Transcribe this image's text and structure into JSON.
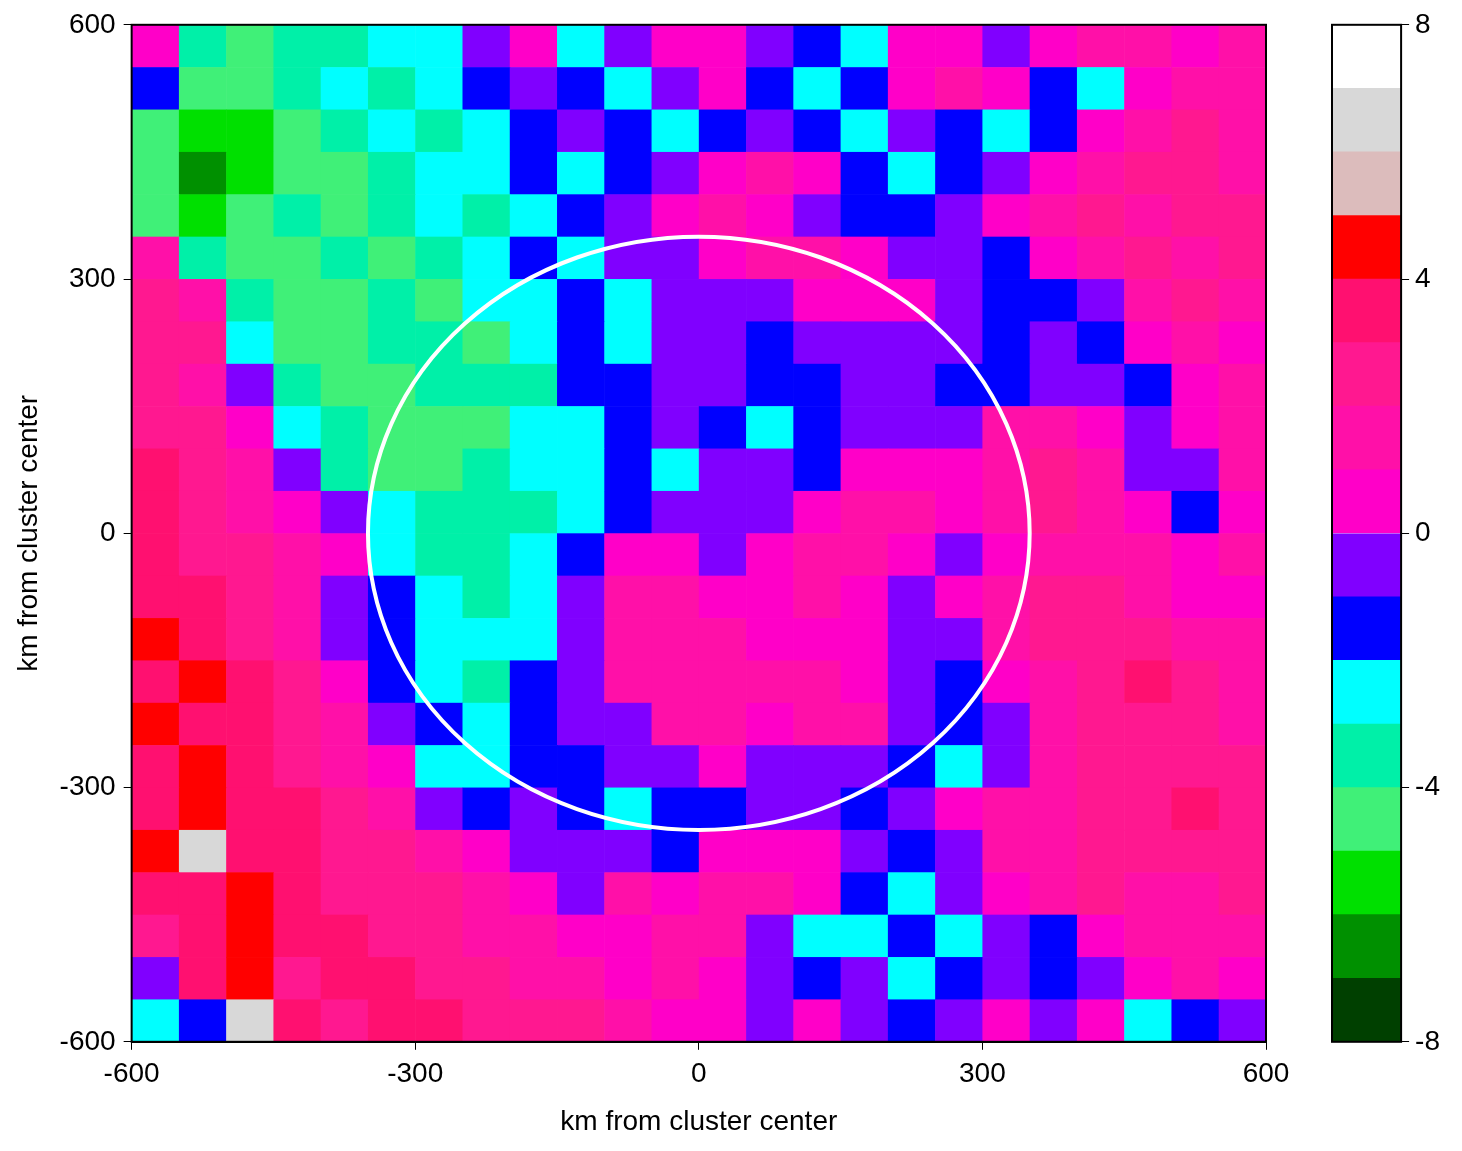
{
  "chart_data": {
    "type": "heatmap",
    "x_label": "km from cluster center",
    "y_label": "km from cluster center",
    "xlim": [
      -600,
      600
    ],
    "ylim": [
      -600,
      600
    ],
    "xticks": [
      -600,
      -300,
      0,
      300,
      600
    ],
    "yticks": [
      -600,
      -300,
      0,
      300,
      600
    ],
    "x": [
      -575,
      -525,
      -475,
      -425,
      -375,
      -325,
      -275,
      -225,
      -175,
      -125,
      -75,
      -25,
      25,
      75,
      125,
      175,
      225,
      275,
      325,
      375,
      425,
      475,
      525,
      575
    ],
    "y": [
      575,
      525,
      475,
      425,
      375,
      325,
      275,
      225,
      175,
      125,
      75,
      25,
      -25,
      -75,
      -125,
      -175,
      -225,
      -275,
      -325,
      -375,
      -425,
      -475,
      -525,
      -575
    ],
    "values": [
      [
        0.5,
        -3.5,
        -4.5,
        -3.5,
        -3.5,
        -2.5,
        -2.5,
        -0.5,
        0.5,
        -2.5,
        -0.5,
        0.5,
        0.5,
        -0.5,
        -1.5,
        -2.5,
        0.5,
        0.5,
        -0.5,
        0.5,
        1.5,
        1.5,
        0.5,
        1.5
      ],
      [
        -1.5,
        -4.5,
        -4.5,
        -3.5,
        -2.5,
        -3.5,
        -2.5,
        -1.5,
        -0.5,
        -1.5,
        -2.5,
        -0.5,
        0.5,
        -1.5,
        -2.5,
        -1.5,
        0.5,
        1.5,
        0.5,
        -1.5,
        -2.5,
        0.5,
        1.5,
        1.5
      ],
      [
        -4.5,
        -5.5,
        -5.5,
        -4.5,
        -3.5,
        -2.5,
        -3.5,
        -2.5,
        -1.5,
        -0.5,
        -1.5,
        -2.5,
        -1.5,
        -0.5,
        -1.5,
        -2.5,
        -0.5,
        -1.5,
        -2.5,
        -1.5,
        0.5,
        1.5,
        2.5,
        1.5
      ],
      [
        -4.5,
        -6.5,
        -5.5,
        -4.5,
        -4.5,
        -3.5,
        -2.5,
        -2.5,
        -1.5,
        -2.5,
        -1.5,
        -0.5,
        0.5,
        1.5,
        0.5,
        -1.5,
        -2.5,
        -1.5,
        -0.5,
        0.5,
        1.5,
        2.5,
        2.5,
        1.5
      ],
      [
        -4.5,
        -5.5,
        -4.5,
        -3.5,
        -4.5,
        -3.5,
        -2.5,
        -3.5,
        -2.5,
        -1.5,
        -0.5,
        0.5,
        1.5,
        0.5,
        -0.5,
        -1.5,
        -1.5,
        -0.5,
        0.5,
        1.5,
        2.5,
        1.5,
        2.5,
        2.5
      ],
      [
        1.5,
        -3.5,
        -4.5,
        -4.5,
        -3.5,
        -4.5,
        -3.5,
        -2.5,
        -1.5,
        -2.5,
        -0.5,
        -0.5,
        0.5,
        1.5,
        1.5,
        0.5,
        -0.5,
        -0.5,
        -1.5,
        0.5,
        1.5,
        2.5,
        1.5,
        2.5
      ],
      [
        2.5,
        1.5,
        -3.5,
        -4.5,
        -4.5,
        -3.5,
        -4.5,
        -2.5,
        -2.5,
        -1.5,
        -2.5,
        -0.5,
        -0.5,
        -0.5,
        0.5,
        0.5,
        0.5,
        -0.5,
        -1.5,
        -1.5,
        -0.5,
        1.5,
        2.5,
        1.5
      ],
      [
        2.5,
        2.5,
        -2.5,
        -4.5,
        -4.5,
        -3.5,
        -3.5,
        -4.5,
        -2.5,
        -1.5,
        -2.5,
        -0.5,
        -0.5,
        -1.5,
        -0.5,
        -0.5,
        -0.5,
        -0.5,
        -1.5,
        -0.5,
        -1.5,
        0.5,
        1.5,
        0.5
      ],
      [
        2.5,
        1.5,
        -0.5,
        -3.5,
        -4.5,
        -4.5,
        -3.5,
        -3.5,
        -3.5,
        -1.5,
        -1.5,
        -0.5,
        -0.5,
        -1.5,
        -1.5,
        -0.5,
        -0.5,
        -1.5,
        -1.5,
        -0.5,
        -0.5,
        -1.5,
        0.5,
        1.5
      ],
      [
        2.5,
        2.5,
        0.5,
        -2.5,
        -3.5,
        -4.5,
        -4.5,
        -4.5,
        -2.5,
        -2.5,
        -1.5,
        -0.5,
        -1.5,
        -2.5,
        -1.5,
        -0.5,
        -0.5,
        -0.5,
        1.5,
        1.5,
        0.5,
        -0.5,
        0.5,
        1.5
      ],
      [
        3.5,
        2.5,
        1.5,
        -0.5,
        -3.5,
        -4.5,
        -4.5,
        -3.5,
        -2.5,
        -2.5,
        -1.5,
        -2.5,
        -0.5,
        -0.5,
        -1.5,
        0.5,
        0.5,
        0.5,
        1.5,
        2.5,
        1.5,
        -0.5,
        -0.5,
        1.5
      ],
      [
        3.5,
        2.5,
        1.5,
        0.5,
        -0.5,
        -2.5,
        -3.5,
        -3.5,
        -3.5,
        -2.5,
        -1.5,
        -0.5,
        -0.5,
        -0.5,
        0.5,
        1.5,
        1.5,
        0.5,
        1.5,
        2.5,
        1.5,
        0.5,
        -1.5,
        0.5
      ],
      [
        3.5,
        2.5,
        2.5,
        1.5,
        0.5,
        -2.5,
        -3.5,
        -3.5,
        -2.5,
        -1.5,
        0.5,
        0.5,
        -0.5,
        0.5,
        1.5,
        1.5,
        0.5,
        -0.5,
        0.5,
        1.5,
        1.5,
        1.5,
        0.5,
        1.5
      ],
      [
        3.5,
        3.5,
        2.5,
        1.5,
        -0.5,
        -1.5,
        -2.5,
        -3.5,
        -2.5,
        -0.5,
        1.5,
        1.5,
        0.5,
        0.5,
        1.5,
        0.5,
        -0.5,
        0.5,
        1.5,
        2.5,
        2.5,
        1.5,
        0.5,
        0.5
      ],
      [
        4.5,
        3.5,
        2.5,
        1.5,
        -0.5,
        -1.5,
        -2.5,
        -2.5,
        -2.5,
        -0.5,
        1.5,
        1.5,
        1.5,
        0.5,
        0.5,
        0.5,
        -0.5,
        -0.5,
        1.5,
        2.5,
        2.5,
        2.5,
        1.5,
        1.5
      ],
      [
        3.5,
        4.5,
        3.5,
        2.5,
        0.5,
        -1.5,
        -2.5,
        -3.5,
        -1.5,
        -0.5,
        1.5,
        1.5,
        1.5,
        1.5,
        1.5,
        0.5,
        -0.5,
        -1.5,
        0.5,
        1.5,
        2.5,
        3.5,
        2.5,
        1.5
      ],
      [
        4.5,
        3.5,
        3.5,
        2.5,
        1.5,
        -0.5,
        -1.5,
        -2.5,
        -1.5,
        -0.5,
        -0.5,
        1.5,
        1.5,
        0.5,
        1.5,
        1.5,
        -0.5,
        -1.5,
        -0.5,
        1.5,
        2.5,
        2.5,
        2.5,
        1.5
      ],
      [
        3.5,
        4.5,
        3.5,
        2.5,
        1.5,
        0.5,
        -2.5,
        -2.5,
        -1.5,
        -1.5,
        -0.5,
        -0.5,
        0.5,
        -0.5,
        -0.5,
        -0.5,
        -1.5,
        -2.5,
        -0.5,
        1.5,
        2.5,
        2.5,
        2.5,
        2.5
      ],
      [
        3.5,
        4.5,
        3.5,
        3.5,
        2.5,
        1.5,
        -0.5,
        -1.5,
        -0.5,
        -1.5,
        -2.5,
        -1.5,
        -1.5,
        -0.5,
        -0.5,
        -1.5,
        -0.5,
        0.5,
        1.5,
        1.5,
        2.5,
        2.5,
        3.5,
        2.5
      ],
      [
        4.5,
        6.5,
        3.5,
        3.5,
        2.5,
        2.5,
        1.5,
        0.5,
        -0.5,
        -0.5,
        -0.5,
        -1.5,
        0.5,
        0.5,
        0.5,
        -0.5,
        -1.5,
        -0.5,
        1.5,
        1.5,
        2.5,
        2.5,
        2.5,
        2.5
      ],
      [
        3.5,
        3.5,
        4.5,
        3.5,
        2.5,
        2.5,
        2.5,
        1.5,
        0.5,
        -0.5,
        1.5,
        0.5,
        1.5,
        1.5,
        0.5,
        -1.5,
        -2.5,
        -0.5,
        0.5,
        1.5,
        2.5,
        1.5,
        1.5,
        2.5
      ],
      [
        2.5,
        3.5,
        4.5,
        3.5,
        3.5,
        2.5,
        2.5,
        1.5,
        1.5,
        0.5,
        0.5,
        1.5,
        1.5,
        -0.5,
        -2.5,
        -2.5,
        -1.5,
        -2.5,
        -0.5,
        -1.5,
        0.5,
        1.5,
        1.5,
        1.5
      ],
      [
        -0.5,
        3.5,
        4.5,
        2.5,
        3.5,
        3.5,
        2.5,
        2.5,
        1.5,
        1.5,
        0.5,
        1.5,
        0.5,
        -0.5,
        -1.5,
        -0.5,
        -2.5,
        -1.5,
        -0.5,
        -1.5,
        -0.5,
        0.5,
        1.5,
        0.5
      ],
      [
        -2.5,
        -1.5,
        6.5,
        3.5,
        2.5,
        3.5,
        3.5,
        2.5,
        2.5,
        2.5,
        1.5,
        0.5,
        0.5,
        -0.5,
        0.5,
        -0.5,
        -1.5,
        -0.5,
        0.5,
        -0.5,
        0.5,
        -2.5,
        -1.5,
        -0.5
      ]
    ],
    "colorbar": {
      "range": [
        -8,
        8
      ],
      "ticks": [
        -8,
        -4,
        0,
        4,
        8
      ],
      "levels": [
        -8,
        -7,
        -6,
        -5,
        -4,
        -3,
        -2,
        -1,
        0,
        1,
        2,
        3,
        4,
        5,
        6,
        7,
        8
      ],
      "colors": [
        "#004000",
        "#009000",
        "#00e000",
        "#40f078",
        "#00f0a8",
        "#00ffff",
        "#0000ff",
        "#8000ff",
        "#ff00c8",
        "#ff10a8",
        "#ff1890",
        "#ff1070",
        "#ff0000",
        "#dcbcbc",
        "#d8d8d8",
        "#ffffff"
      ]
    },
    "circle": {
      "x": 0,
      "y": 0,
      "radius": 350
    }
  }
}
